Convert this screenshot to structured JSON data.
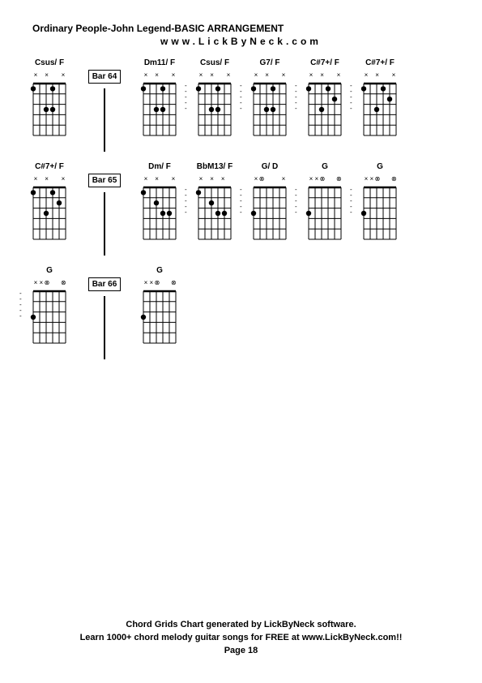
{
  "title": "Ordinary People-John Legend-BASIC ARRANGEMENT",
  "subtitle": "www.LickByNeck.com",
  "footer_line1": "Chord Grids Chart generated by LickByNeck software.",
  "footer_line2": "Learn 1000+ chord melody guitar songs for FREE at www.LickByNeck.com!!",
  "footer_page": "Page 18",
  "grid": {
    "strings": 6,
    "frets": 5,
    "width": 40,
    "height": 64,
    "line_color": "#000000",
    "dot_radius": 3.2,
    "dot_color": "#000000"
  },
  "rows": [
    {
      "bar_label": "Bar 64",
      "chords": [
        {
          "name": "Csus/ F",
          "markers": [
            "x",
            "",
            "x",
            "",
            "",
            "x"
          ],
          "dots": [
            [
              1,
              0
            ],
            [
              1,
              3
            ],
            [
              3,
              2
            ],
            [
              3,
              3
            ]
          ],
          "dash_before": false
        },
        {
          "name": "Dm11/ F",
          "markers": [
            "x",
            "",
            "x",
            "",
            "",
            "x"
          ],
          "dots": [
            [
              1,
              0
            ],
            [
              1,
              3
            ],
            [
              3,
              2
            ],
            [
              3,
              3
            ]
          ],
          "dash_before": false
        },
        {
          "name": "Csus/ F",
          "markers": [
            "x",
            "",
            "x",
            "",
            "",
            "x"
          ],
          "dots": [
            [
              1,
              0
            ],
            [
              1,
              3
            ],
            [
              3,
              2
            ],
            [
              3,
              3
            ]
          ],
          "dash_before": true
        },
        {
          "name": "G7/ F",
          "markers": [
            "x",
            "",
            "x",
            "",
            "",
            "x"
          ],
          "dots": [
            [
              1,
              0
            ],
            [
              1,
              3
            ],
            [
              3,
              2
            ],
            [
              3,
              3
            ]
          ],
          "dash_before": true
        },
        {
          "name": "C#7+/ F",
          "markers": [
            "x",
            "",
            "x",
            "",
            "",
            "x"
          ],
          "dots": [
            [
              1,
              0
            ],
            [
              1,
              3
            ],
            [
              2,
              4
            ],
            [
              3,
              2
            ]
          ],
          "dash_before": true
        },
        {
          "name": "C#7+/ F",
          "markers": [
            "x",
            "",
            "x",
            "",
            "",
            "x"
          ],
          "dots": [
            [
              1,
              0
            ],
            [
              1,
              3
            ],
            [
              2,
              4
            ],
            [
              3,
              2
            ]
          ],
          "dash_before": true
        }
      ]
    },
    {
      "bar_label": "Bar 65",
      "chords": [
        {
          "name": "C#7+/ F",
          "markers": [
            "x",
            "",
            "x",
            "",
            "",
            "x"
          ],
          "dots": [
            [
              1,
              0
            ],
            [
              1,
              3
            ],
            [
              2,
              4
            ],
            [
              3,
              2
            ]
          ],
          "dash_before": false
        },
        {
          "name": "Dm/ F",
          "markers": [
            "x",
            "",
            "x",
            "",
            "",
            "x"
          ],
          "dots": [
            [
              1,
              0
            ],
            [
              2,
              2
            ],
            [
              3,
              3
            ],
            [
              3,
              4
            ]
          ],
          "dash_before": false
        },
        {
          "name": "BbM13/ F",
          "markers": [
            "x",
            "",
            "x",
            "",
            "x",
            ""
          ],
          "dots": [
            [
              1,
              0
            ],
            [
              2,
              2
            ],
            [
              3,
              3
            ],
            [
              3,
              4
            ]
          ],
          "dash_before": true
        },
        {
          "name": "G/ D",
          "markers": [
            "x",
            "⊗",
            "",
            "",
            "",
            "x"
          ],
          "dots": [
            [
              3,
              0
            ]
          ],
          "dash_before": true
        },
        {
          "name": "G",
          "markers": [
            "x",
            "x",
            "⊗",
            "",
            "",
            "⊗"
          ],
          "dots": [
            [
              3,
              0
            ]
          ],
          "dash_before": true
        },
        {
          "name": "G",
          "markers": [
            "x",
            "x",
            "⊗",
            "",
            "",
            "⊗"
          ],
          "dots": [
            [
              3,
              0
            ]
          ],
          "dash_before": true
        }
      ]
    },
    {
      "bar_label": "Bar 66",
      "chords": [
        {
          "name": "G",
          "markers": [
            "x",
            "x",
            "⊗",
            "",
            "",
            "⊗"
          ],
          "dots": [
            [
              3,
              0
            ]
          ],
          "dash_before": true
        },
        {
          "name": "G",
          "markers": [
            "x",
            "x",
            "⊗",
            "",
            "",
            "⊗"
          ],
          "dots": [
            [
              3,
              0
            ]
          ],
          "dash_before": false
        }
      ]
    }
  ]
}
